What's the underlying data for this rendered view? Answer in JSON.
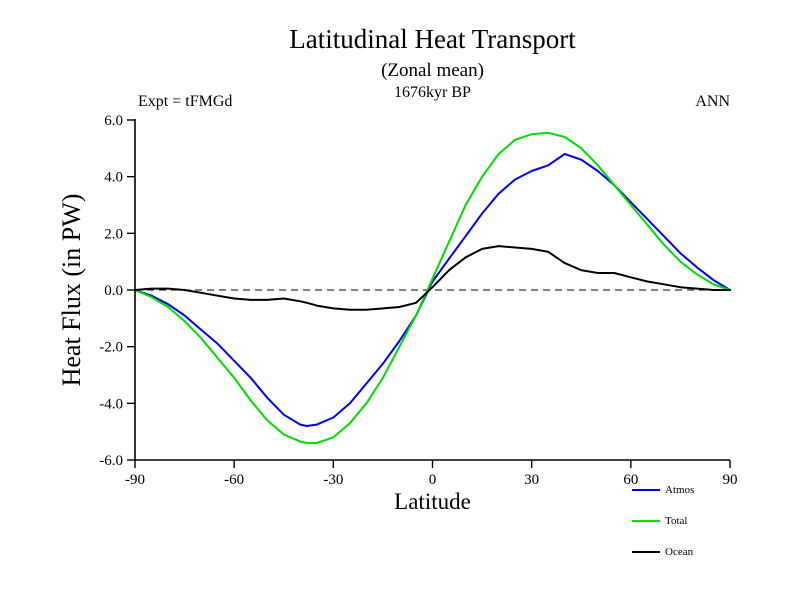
{
  "chart_data": {
    "type": "line",
    "title": "Latitudinal Heat Transport",
    "subtitle": "(Zonal mean)",
    "time_label": "1676kyr BP",
    "experiment": "Expt = tFMGd",
    "season": "ANN",
    "xlabel": "Latitude",
    "ylabel": "Heat Flux (in PW)",
    "xlim": [
      -90,
      90
    ],
    "ylim": [
      -6,
      6
    ],
    "xticks": [
      -90,
      -60,
      -30,
      0,
      30,
      60,
      90
    ],
    "yticks": [
      6.0,
      4.0,
      2.0,
      0.0,
      -2.0,
      -4.0,
      -6.0
    ],
    "ytick_labels": [
      "6.0",
      "4.0",
      "2.0",
      "0.0",
      "-2.0",
      "-4.0",
      "-6.0"
    ],
    "grid": false,
    "zero_line_style": "dashed",
    "background": "#ffffff",
    "legend_position": "bottom-right",
    "series": [
      {
        "name": "Atmos",
        "color": "#0000ee",
        "x": [
          -90,
          -85,
          -80,
          -75,
          -70,
          -65,
          -60,
          -55,
          -50,
          -45,
          -40,
          -38,
          -35,
          -30,
          -25,
          -20,
          -15,
          -10,
          -5,
          0,
          5,
          10,
          15,
          20,
          25,
          30,
          35,
          40,
          45,
          50,
          55,
          60,
          65,
          70,
          75,
          80,
          85,
          90
        ],
        "y": [
          0,
          -0.2,
          -0.5,
          -0.9,
          -1.4,
          -1.9,
          -2.5,
          -3.1,
          -3.8,
          -4.4,
          -4.75,
          -4.8,
          -4.75,
          -4.5,
          -4.0,
          -3.3,
          -2.6,
          -1.8,
          -0.9,
          0.3,
          1.1,
          1.9,
          2.7,
          3.4,
          3.9,
          4.2,
          4.4,
          4.8,
          4.6,
          4.2,
          3.7,
          3.1,
          2.5,
          1.9,
          1.3,
          0.8,
          0.35,
          0
        ]
      },
      {
        "name": "Total",
        "color": "#00dd00",
        "x": [
          -90,
          -85,
          -80,
          -75,
          -70,
          -65,
          -60,
          -55,
          -50,
          -45,
          -40,
          -38,
          -35,
          -30,
          -25,
          -20,
          -15,
          -10,
          -5,
          0,
          5,
          10,
          15,
          20,
          25,
          30,
          35,
          40,
          45,
          50,
          55,
          60,
          65,
          70,
          75,
          80,
          85,
          90
        ],
        "y": [
          0,
          -0.25,
          -0.6,
          -1.1,
          -1.7,
          -2.4,
          -3.1,
          -3.9,
          -4.6,
          -5.1,
          -5.35,
          -5.4,
          -5.4,
          -5.2,
          -4.7,
          -4.0,
          -3.1,
          -2.0,
          -0.9,
          0.4,
          1.7,
          3.0,
          4.0,
          4.8,
          5.3,
          5.5,
          5.55,
          5.4,
          5.0,
          4.4,
          3.7,
          3.0,
          2.3,
          1.6,
          1.0,
          0.55,
          0.2,
          0
        ]
      },
      {
        "name": "Ocean",
        "color": "#000000",
        "x": [
          -90,
          -85,
          -80,
          -75,
          -70,
          -65,
          -60,
          -55,
          -50,
          -45,
          -40,
          -38,
          -35,
          -30,
          -25,
          -20,
          -15,
          -10,
          -5,
          0,
          5,
          10,
          15,
          20,
          25,
          30,
          35,
          40,
          45,
          50,
          55,
          60,
          65,
          70,
          75,
          80,
          85,
          90
        ],
        "y": [
          0,
          0.05,
          0.05,
          0.0,
          -0.1,
          -0.2,
          -0.3,
          -0.35,
          -0.35,
          -0.3,
          -0.4,
          -0.45,
          -0.55,
          -0.65,
          -0.7,
          -0.7,
          -0.65,
          -0.6,
          -0.45,
          0.1,
          0.7,
          1.15,
          1.45,
          1.55,
          1.5,
          1.45,
          1.35,
          0.95,
          0.7,
          0.6,
          0.6,
          0.45,
          0.3,
          0.2,
          0.1,
          0.05,
          0.0,
          0
        ]
      }
    ]
  }
}
